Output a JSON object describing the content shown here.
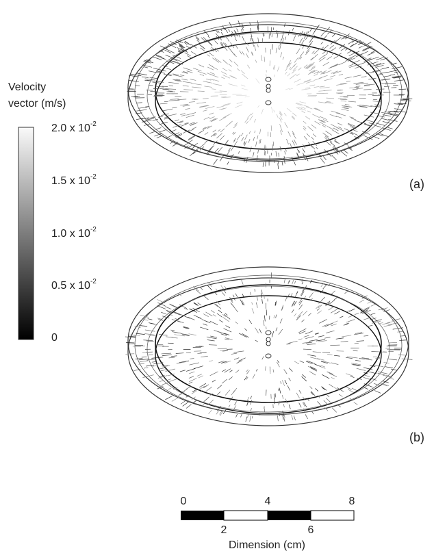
{
  "colorbar": {
    "title": [
      "Velocity",
      "vector (m/s)"
    ],
    "ticks": [
      {
        "mantissa": "2.0 x 10",
        "exponent": "-2"
      },
      {
        "mantissa": "1.5 x 10",
        "exponent": "-2"
      },
      {
        "mantissa": "1.0 x 10",
        "exponent": "-2"
      },
      {
        "mantissa": "0.5 x 10",
        "exponent": "-2"
      },
      {
        "mantissa": "0"
      }
    ]
  },
  "panels": [
    {
      "label": "(a)"
    },
    {
      "label": "(b)"
    }
  ],
  "scale_bar": {
    "top_labels": [
      "0",
      "4",
      "8"
    ],
    "bottom_labels": [
      "2",
      "6"
    ],
    "title": "Dimension (cm)"
  }
}
